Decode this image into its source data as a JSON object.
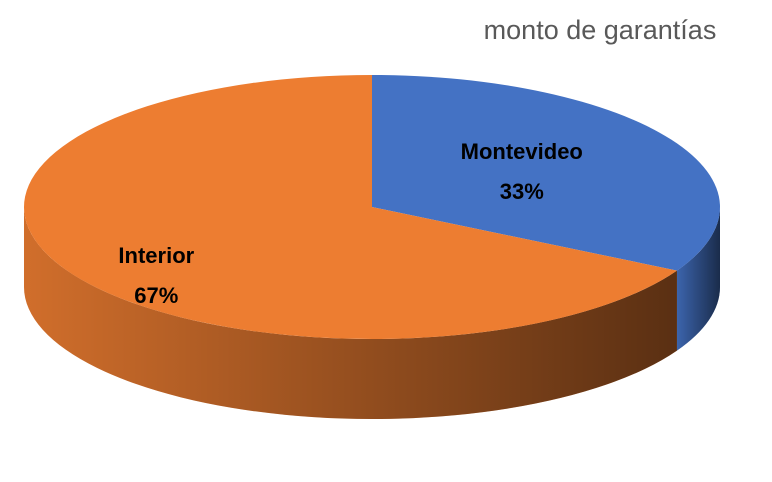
{
  "chart_data": {
    "type": "pie",
    "title": "monto de garantías",
    "categories": [
      "Montevideo",
      "Interior"
    ],
    "values": [
      33,
      67
    ],
    "value_labels": [
      "33%",
      "67%"
    ],
    "colors": [
      "#4472c4",
      "#ed7d31"
    ]
  }
}
